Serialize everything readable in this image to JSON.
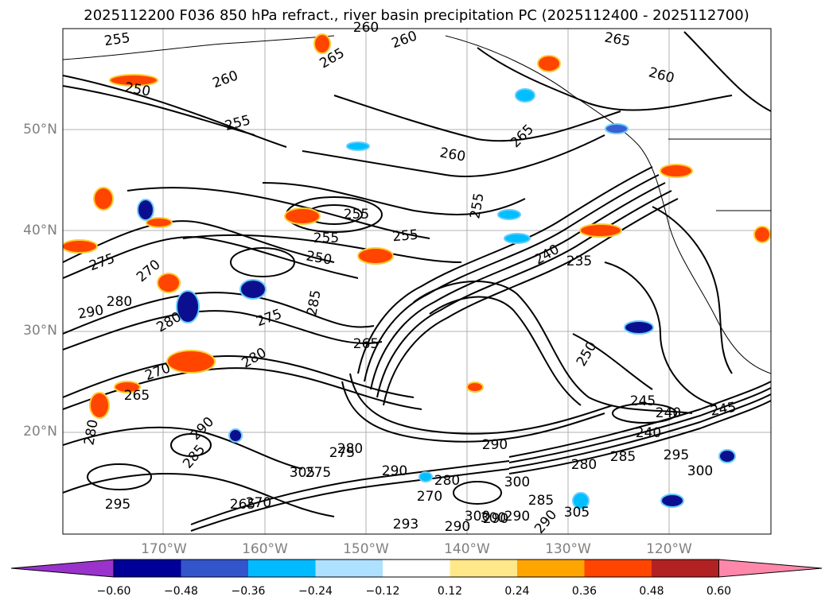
{
  "title": "2025112200 F036 850 hPa refract., river basin precipitation PC (2025112400 - 2025112700)",
  "map": {
    "lat_labels": [
      "50°N",
      "40°N",
      "30°N",
      "20°N"
    ],
    "lon_labels": [
      "170°W",
      "160°W",
      "150°W",
      "140°W",
      "130°W",
      "120°W"
    ],
    "contour_labels": [
      "255",
      "250",
      "255",
      "260",
      "260",
      "265",
      "260",
      "265",
      "260",
      "260",
      "265",
      "255",
      "255",
      "255",
      "250",
      "255",
      "275",
      "270",
      "280",
      "290",
      "280",
      "285",
      "275",
      "280",
      "265",
      "270",
      "265",
      "280",
      "290",
      "285",
      "280",
      "275",
      "290",
      "280",
      "270",
      "290",
      "300",
      "290",
      "305",
      "295",
      "300",
      "235",
      "240",
      "245",
      "250",
      "245",
      "240",
      "240",
      "285",
      "280",
      "290",
      "295",
      "300",
      "305",
      "275",
      "285",
      "290",
      "293",
      "290",
      "300",
      "265",
      "270"
    ],
    "colors": {
      "strong_negative": "#0b0f8f",
      "negative": "#3a5fd0",
      "weak_negative": "#00bfff",
      "positive": "#ff9900",
      "strong_positive": "#ff4500",
      "coast": "#000000"
    }
  },
  "colorbar": {
    "ticks": [
      "−0.60",
      "−0.48",
      "−0.36",
      "−0.24",
      "−0.12",
      "0.12",
      "0.24",
      "0.36",
      "0.48",
      "0.60"
    ],
    "colors": [
      "#9933cc",
      "#000099",
      "#3355cc",
      "#00bbff",
      "#aee0ff",
      "#ffffff",
      "#ffe88a",
      "#ffa500",
      "#ff4500",
      "#b22222",
      "#ff88aa"
    ]
  }
}
